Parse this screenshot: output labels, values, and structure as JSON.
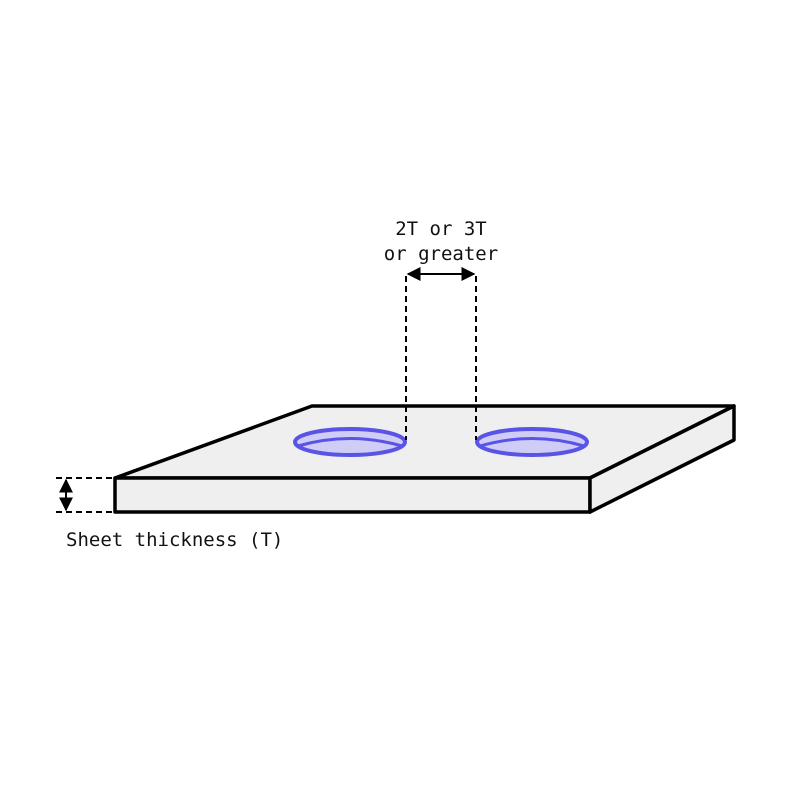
{
  "diagram": {
    "spacing_label": {
      "line1": "2T or 3T",
      "line2": "or greater"
    },
    "thickness_label": "Sheet thickness (T)",
    "colors": {
      "outline": "#000000",
      "sheet_fill": "#efefef",
      "hole_stroke": "#5a54e6",
      "hole_fill": "#cfcdf5",
      "background": "#ffffff"
    }
  }
}
